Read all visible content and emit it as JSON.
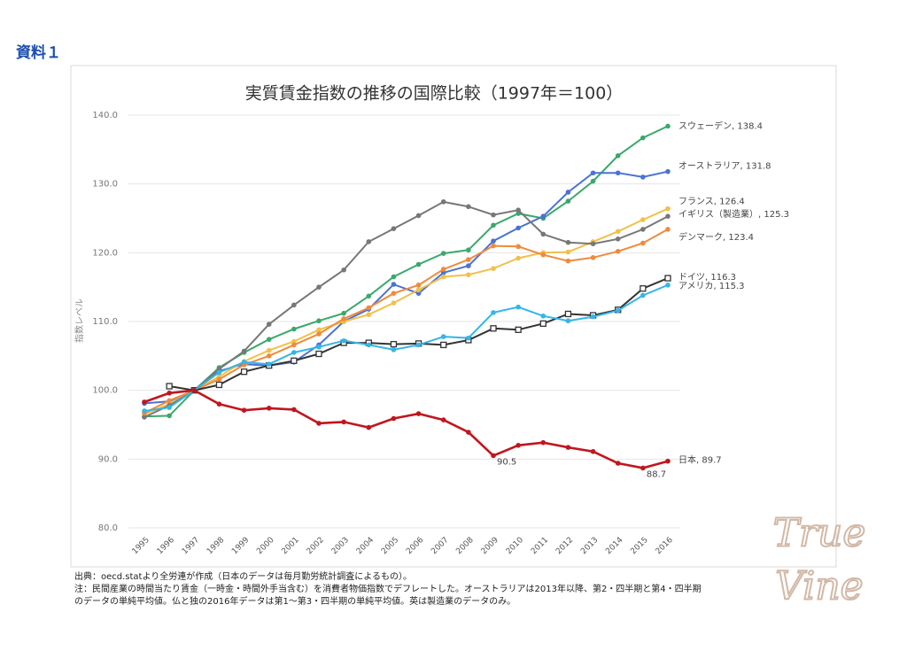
{
  "header": {
    "label": "資料１"
  },
  "chart_data": {
    "type": "line",
    "title": "実質賃金指数の推移の国際比較（1997年＝100）",
    "y_label": "指数レベル",
    "categories": [
      "1995",
      "1996",
      "1997",
      "1998",
      "1999",
      "2000",
      "2001",
      "2002",
      "2003",
      "2004",
      "2005",
      "2006",
      "2007",
      "2008",
      "2009",
      "2010",
      "2011",
      "2012",
      "2013",
      "2014",
      "2015",
      "2016"
    ],
    "ylim": [
      80,
      140
    ],
    "yticks": [
      {
        "value": 80,
        "label": "80.0"
      },
      {
        "value": 90,
        "label": "90.0"
      },
      {
        "value": 100,
        "label": "100.0"
      },
      {
        "value": 110,
        "label": "110.0"
      },
      {
        "value": 120,
        "label": "120.0"
      },
      {
        "value": 130,
        "label": "130.0"
      },
      {
        "value": 140,
        "label": "140.0"
      }
    ],
    "grid": true,
    "series": [
      {
        "name": "スウェーデン, 138.4",
        "color": "#3aa86b",
        "marker": "circle",
        "values": [
          96.2,
          96.3,
          100,
          103.3,
          105.5,
          107.4,
          108.9,
          110.1,
          111.2,
          113.7,
          116.5,
          118.3,
          119.9,
          120.4,
          124.0,
          125.7,
          125.0,
          127.5,
          130.4,
          134.1,
          136.7,
          138.4
        ]
      },
      {
        "name": "オーストラリア, 131.8",
        "color": "#4a72d4",
        "marker": "circle",
        "values": [
          98.1,
          98.4,
          100,
          102.8,
          103.8,
          103.6,
          104.1,
          106.6,
          110.0,
          111.8,
          115.4,
          114.1,
          117.1,
          118.1,
          121.7,
          123.6,
          125.3,
          128.8,
          131.6,
          131.6,
          131.0,
          131.8
        ]
      },
      {
        "name": "フランス, 126.4",
        "color": "#f2c04a",
        "marker": "circle",
        "values": [
          96.5,
          98.0,
          100,
          102.0,
          104.2,
          105.8,
          107.1,
          108.8,
          110.0,
          111.0,
          112.7,
          114.6,
          116.5,
          116.8,
          117.7,
          119.2,
          120.0,
          120.1,
          121.6,
          123.1,
          124.8,
          126.4
        ]
      },
      {
        "name": "イギリス（製造業）, 125.3",
        "color": "#777777",
        "marker": "circle",
        "values": [
          96.1,
          97.8,
          100,
          103.1,
          105.7,
          109.6,
          112.4,
          115.0,
          117.5,
          121.6,
          123.5,
          125.4,
          127.4,
          126.7,
          125.5,
          126.2,
          122.7,
          121.5,
          121.3,
          122.0,
          123.4,
          125.3
        ]
      },
      {
        "name": "デンマーク, 123.4",
        "color": "#f08a3c",
        "marker": "circle",
        "values": [
          96.7,
          98.5,
          100,
          101.6,
          103.7,
          105.0,
          106.6,
          108.2,
          110.4,
          112.0,
          114.1,
          115.3,
          117.6,
          119.0,
          121.0,
          120.9,
          119.7,
          118.8,
          119.3,
          120.2,
          121.4,
          123.4
        ]
      },
      {
        "name": "ドイツ, 116.3",
        "color": "#333333",
        "marker": "square",
        "values": [
          null,
          100.6,
          100,
          100.8,
          102.7,
          103.6,
          104.3,
          105.3,
          106.9,
          106.9,
          106.7,
          106.8,
          106.6,
          107.3,
          109.0,
          108.8,
          109.7,
          111.1,
          110.9,
          111.7,
          114.8,
          116.3
        ]
      },
      {
        "name": "アメリカ, 115.3",
        "color": "#35b5e8",
        "marker": "circle",
        "values": [
          97.0,
          97.5,
          100,
          102.6,
          104.1,
          103.8,
          105.5,
          106.3,
          107.2,
          106.6,
          105.9,
          106.6,
          107.8,
          107.6,
          111.3,
          112.1,
          110.8,
          110.1,
          110.7,
          111.6,
          113.8,
          115.3
        ]
      },
      {
        "name": "日本, 89.7",
        "color": "#c0161e",
        "marker": "circle",
        "values": [
          98.3,
          99.6,
          100,
          98.0,
          97.1,
          97.4,
          97.2,
          95.2,
          95.4,
          94.6,
          95.9,
          96.6,
          95.7,
          93.9,
          90.5,
          92.0,
          92.4,
          91.7,
          91.1,
          89.4,
          88.7,
          89.7
        ],
        "value_labels": [
          null,
          null,
          null,
          null,
          null,
          null,
          null,
          null,
          null,
          null,
          null,
          null,
          null,
          null,
          "90.5",
          null,
          null,
          null,
          null,
          null,
          "88.7",
          null
        ]
      }
    ]
  },
  "notes": [
    "出典：oecd.statより全労連が作成（日本のデータは毎月勤労統計調査によるもの）。",
    "注：民間産業の時間当たり賃金（一時金・時間外手当含む）を消費者物価指数でデフレートした。オーストラリアは2013年以降、第2・四半期と第4・四半期",
    "のデータの単純平均値。仏と独の2016年データは第1〜第3・四半期の単純平均値。英は製造業のデータのみ。"
  ],
  "watermark": [
    "True",
    "Vine"
  ]
}
